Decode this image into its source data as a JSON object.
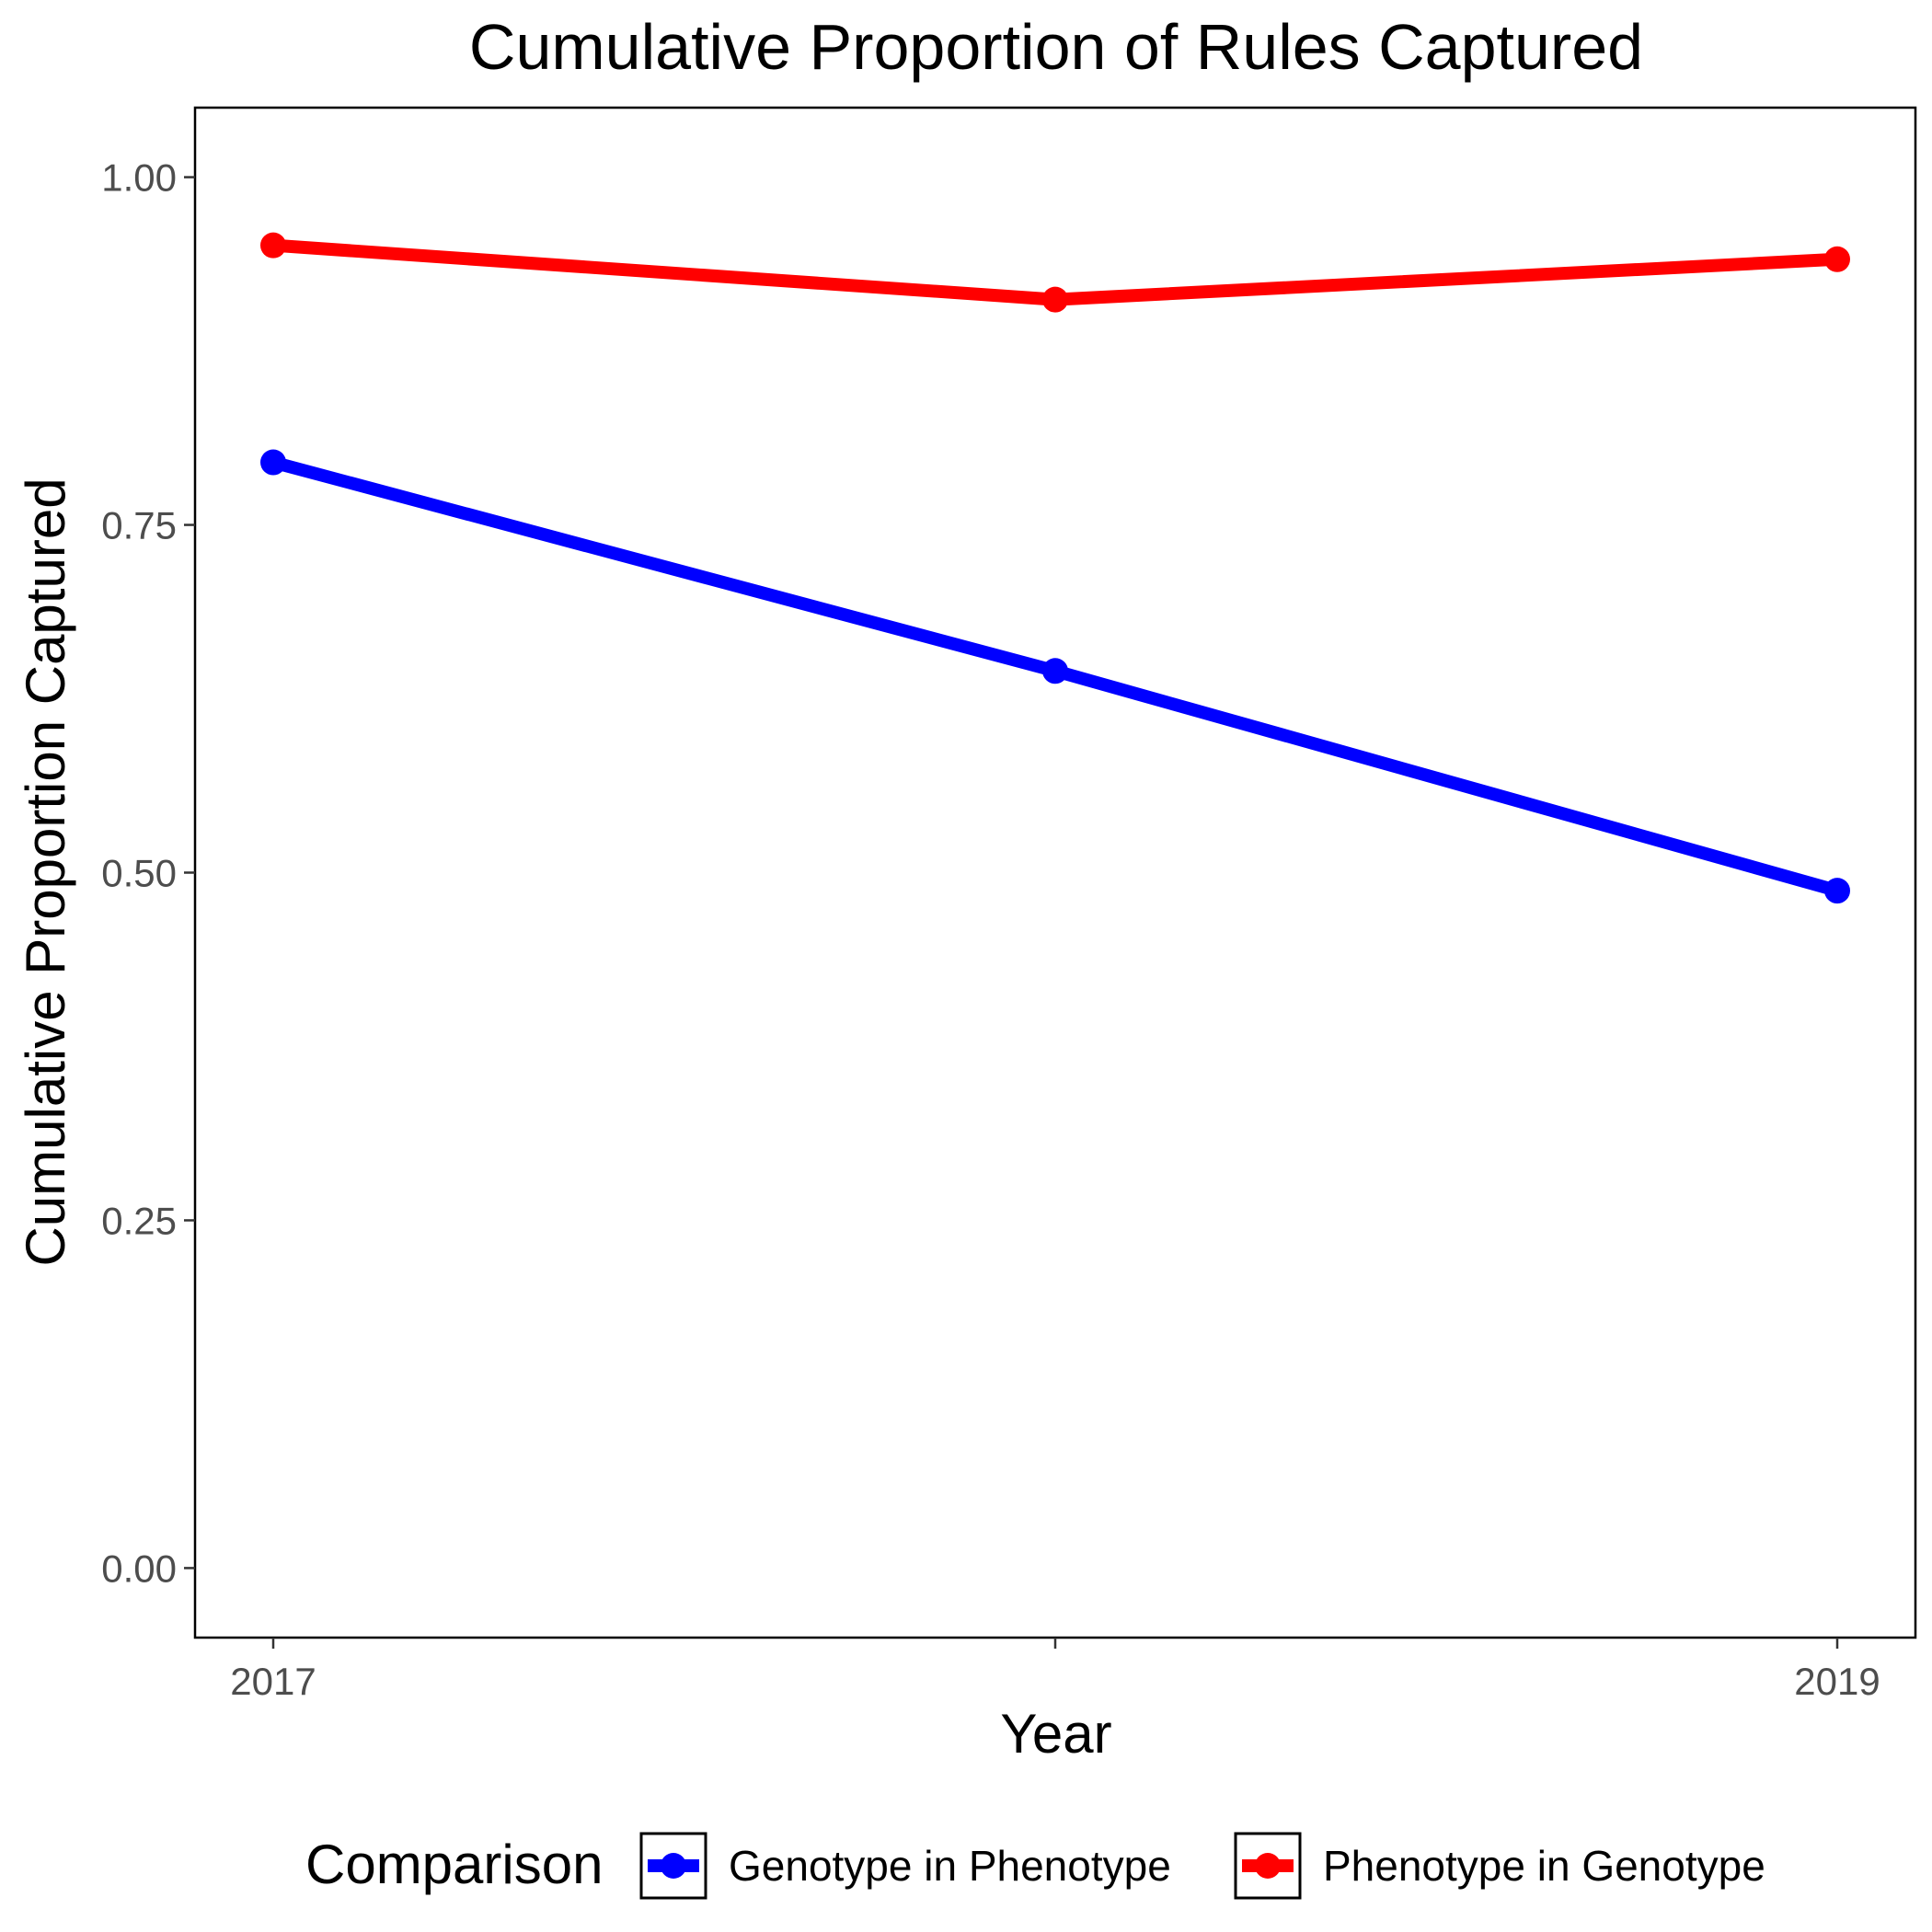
{
  "chart_data": {
    "type": "line",
    "title": "Cumulative Proportion of Rules Captured",
    "xlabel": "Year",
    "ylabel": "Cumulative Proportion Captured",
    "x": [
      2017,
      2018,
      2019
    ],
    "x_tick_labels": [
      "2017",
      "",
      "2019"
    ],
    "xlim": [
      2016.9,
      2019.1
    ],
    "ylim": [
      -0.05,
      1.05
    ],
    "y_ticks": [
      0.0,
      0.25,
      0.5,
      0.75,
      1.0
    ],
    "y_tick_labels": [
      "0.00",
      "0.25",
      "0.50",
      "0.75",
      "1.00"
    ],
    "grid": false,
    "legend": {
      "title": "Comparison",
      "placement": "bottom"
    },
    "series": [
      {
        "name": "Genotype in Phenotype",
        "color": "#0000ff",
        "values": [
          0.795,
          0.645,
          0.487
        ]
      },
      {
        "name": "Phenotype in Genotype",
        "color": "#ff0000",
        "values": [
          0.951,
          0.912,
          0.941
        ]
      }
    ]
  }
}
